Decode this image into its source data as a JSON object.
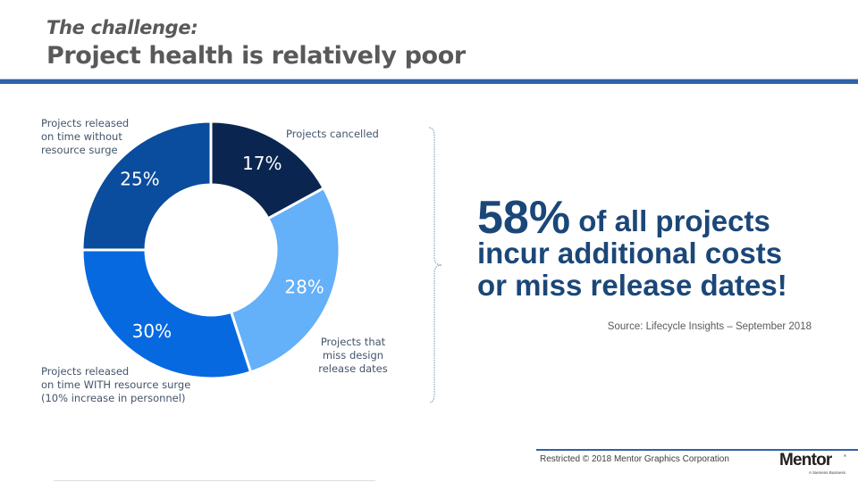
{
  "header": {
    "kicker": "The challenge:",
    "title": "Project health is relatively poor",
    "accent_color": "#2e63a8"
  },
  "chart_data": {
    "type": "pie",
    "variant": "donut",
    "title": "",
    "categories": [
      "Projects cancelled",
      "Projects that miss design release dates",
      "Projects released on time WITH resource surge (10% increase in personnel)",
      "Projects released on time without resource surge"
    ],
    "values": [
      17,
      28,
      30,
      25
    ],
    "value_labels": [
      "17%",
      "28%",
      "30%",
      "25%"
    ],
    "colors": [
      "#0a2650",
      "#64b0f9",
      "#0769e0",
      "#0a4c9d"
    ],
    "start": "top, clockwise",
    "legend": "none (direct labels)",
    "labels": [
      "Projects cancelled",
      "Projects that\nmiss design\nrelease dates",
      "Projects released\non time WITH resource surge\n(10% increase in personnel)",
      "Projects released\non time without\nresource surge"
    ]
  },
  "callout": {
    "big_number": "58%",
    "line1_rest": "of all projects",
    "line2": "incur additional costs",
    "line3": "or miss release dates!",
    "source": "Source: Lifecycle Insights – September 2018",
    "color": "#1b4778"
  },
  "footer": {
    "text": "Restricted © 2018 Mentor Graphics Corporation",
    "logo_word": "Mentor",
    "logo_reg": "®",
    "logo_tagline": "A Siemens Business"
  }
}
